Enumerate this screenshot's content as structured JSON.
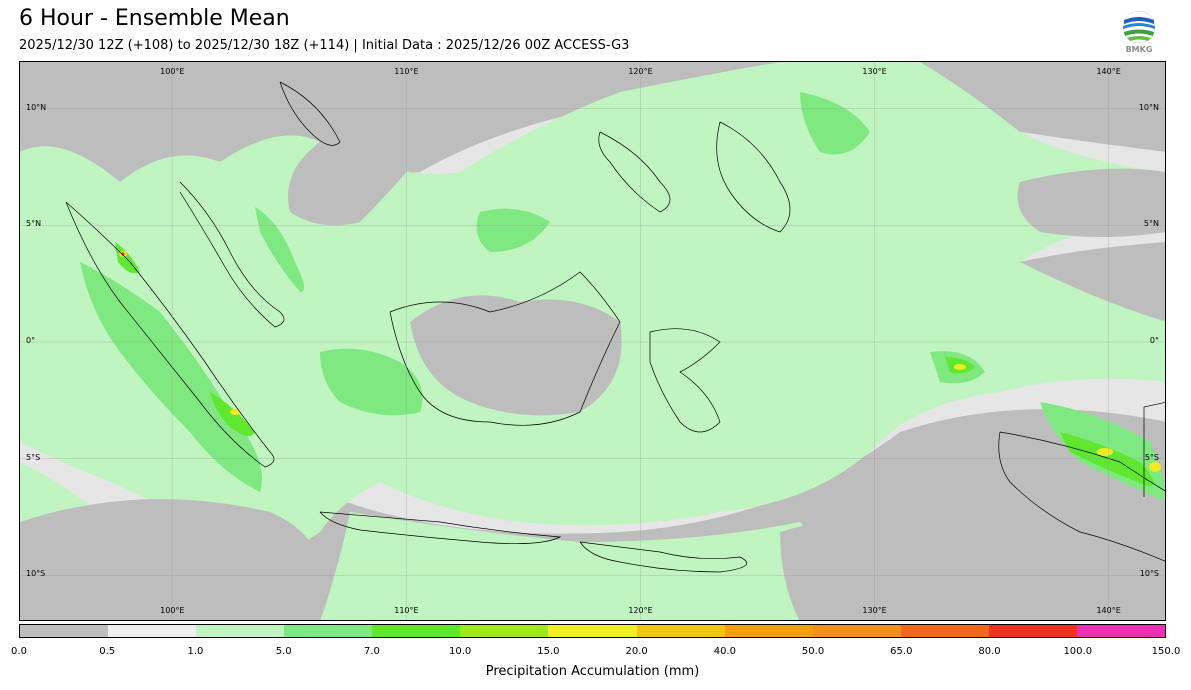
{
  "title": "6 Hour - Ensemble Mean",
  "subtitle": "2025/12/30 12Z (+108) to 2025/12/30 18Z (+114) | Initial Data : 2025/12/26 00Z ACCESS-G3",
  "logo_text": "BMKG",
  "map": {
    "lon_range": [
      93.5,
      142.5
    ],
    "lat_range": [
      -12,
      12
    ],
    "lon_labels": [
      "100°E",
      "110°E",
      "120°E",
      "130°E",
      "140°E"
    ],
    "lon_values": [
      100,
      110,
      120,
      130,
      140
    ],
    "lat_labels": [
      "10°N",
      "5°N",
      "0°",
      "5°S",
      "10°S"
    ],
    "lat_values": [
      10,
      5,
      0,
      -5,
      -10
    ],
    "colors": {
      "no_rain": "#bdbdbd",
      "light": "#e6e6e6",
      "low": "#c0f4c0",
      "moderate": "#80e880",
      "high": "#60e830",
      "heavy": "#f0ec20",
      "extreme": "#f03020"
    }
  },
  "colorbar": {
    "label": "Precipitation Accumulation (mm)",
    "ticks": [
      "0.0",
      "0.5",
      "1.0",
      "5.0",
      "7.0",
      "10.0",
      "15.0",
      "20.0",
      "40.0",
      "50.0",
      "65.0",
      "80.0",
      "100.0",
      "150.0"
    ],
    "colors": [
      "#bdbdbd",
      "#efefef",
      "#c0f4c0",
      "#80e880",
      "#60e830",
      "#a0e820",
      "#f0f020",
      "#f0c810",
      "#f0a010",
      "#f09020",
      "#f06820",
      "#f03020",
      "#e830b0"
    ]
  }
}
